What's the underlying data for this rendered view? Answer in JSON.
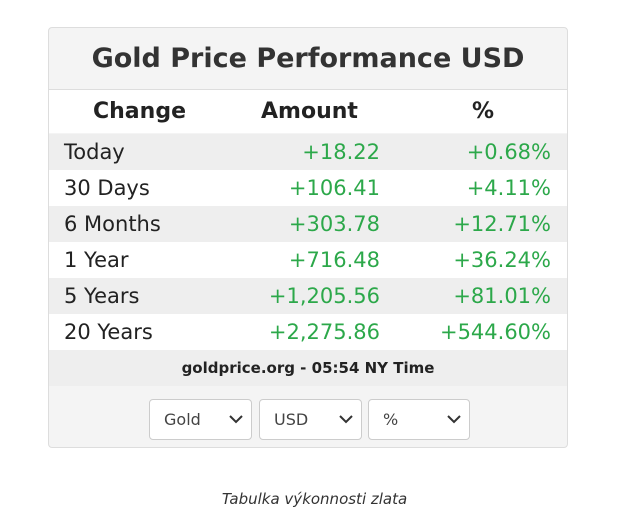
{
  "widget": {
    "title": "Gold Price Performance USD",
    "columns": [
      "Change",
      "Amount",
      "%"
    ],
    "rows": [
      [
        "Today",
        "+18.22",
        "+0.68%"
      ],
      [
        "30 Days",
        "+106.41",
        "+4.11%"
      ],
      [
        "6 Months",
        "+303.78",
        "+12.71%"
      ],
      [
        "1 Year",
        "+716.48",
        "+36.24%"
      ],
      [
        "5 Years",
        "+1,205.56",
        "+81.01%"
      ],
      [
        "20 Years",
        "+2,275.86",
        "+544.60%"
      ]
    ],
    "footer": "goldprice.org - 05:54 NY Time",
    "selects": [
      "Gold",
      "USD",
      "%"
    ]
  },
  "caption": "Tabulka výkonnosti zlata"
}
